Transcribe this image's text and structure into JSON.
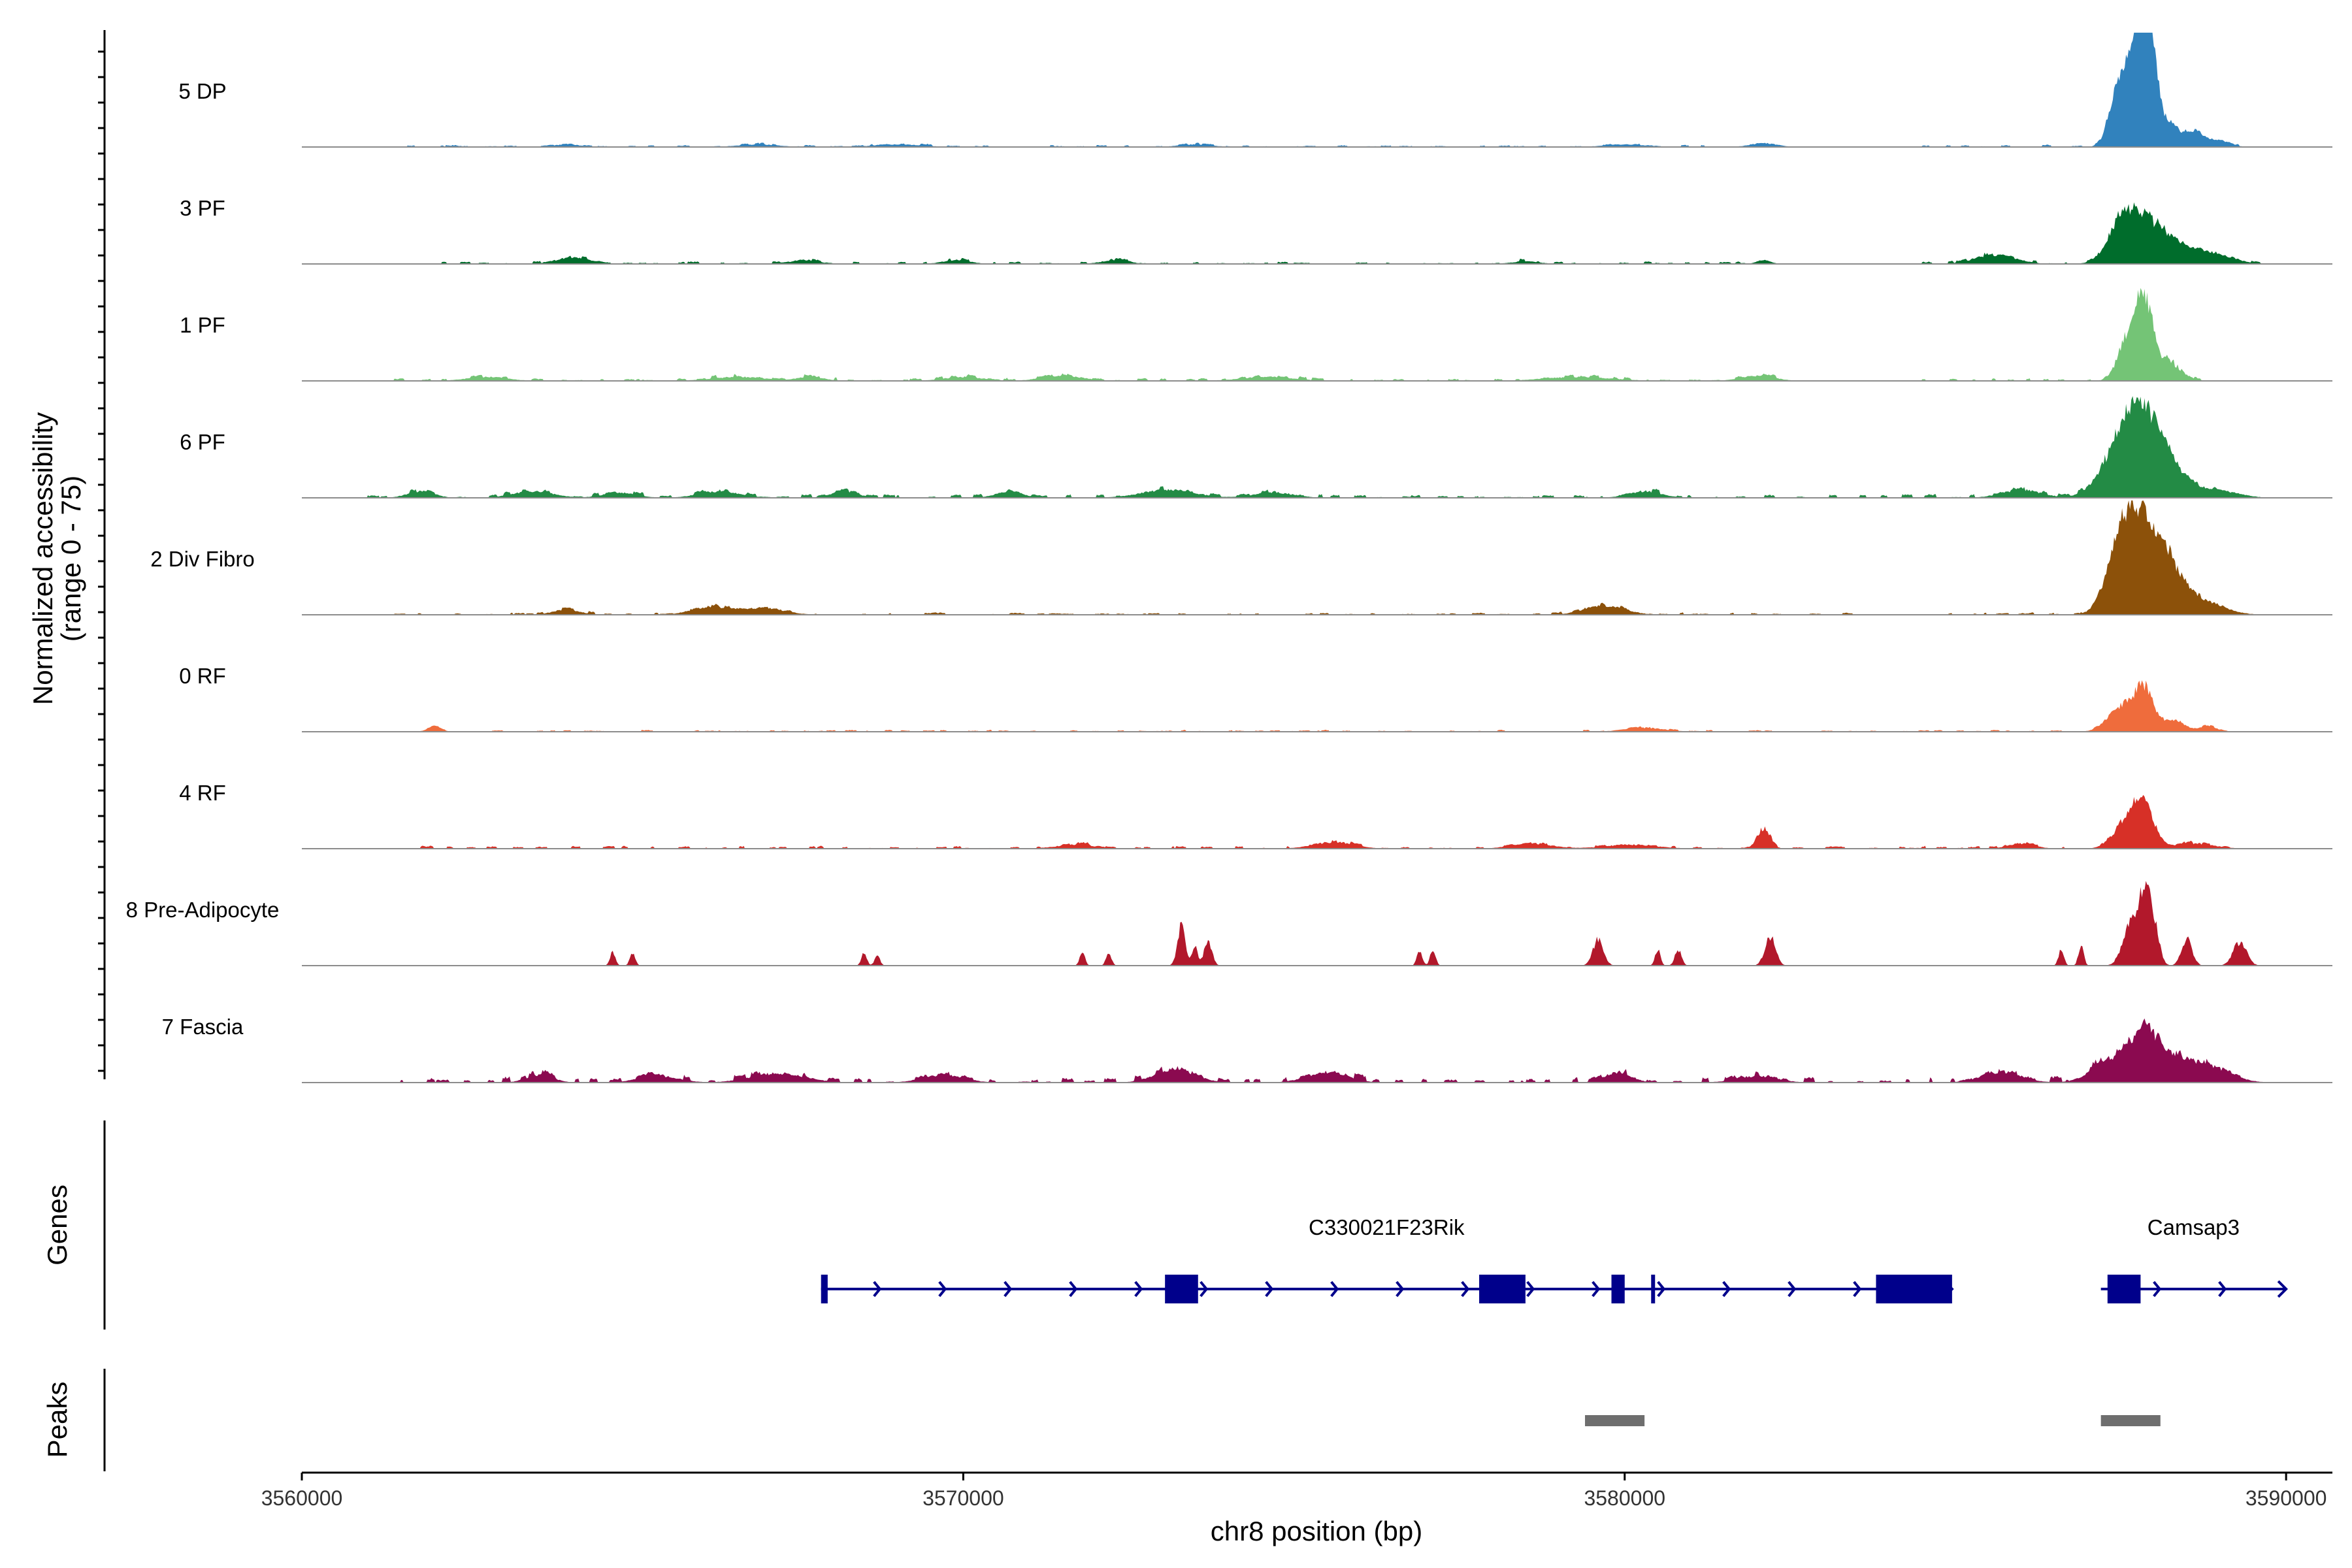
{
  "chart_data": {
    "type": "area",
    "chromosome": "chr8",
    "xlabel": "chr8 position (bp)",
    "xlim": [
      3560000,
      3590700
    ],
    "x_ticks": [
      3560000,
      3570000,
      3580000,
      3590000
    ],
    "x_tick_labels": [
      "3560000",
      "3570000",
      "3580000",
      "3590000"
    ],
    "ylabel_line1": "Normalized accessibility",
    "ylabel_line2": "(range 0 - 75)",
    "ylim": [
      0,
      75
    ],
    "tracks": [
      {
        "name": "5 DP",
        "color": "#3182bd",
        "background": [
          [
            3561000,
            3581500,
            0.8
          ],
          [
            3584500,
            3589300,
            1.0
          ]
        ],
        "peaks": [
          [
            3564000,
            200,
            2
          ],
          [
            3566900,
            300,
            2
          ],
          [
            3569000,
            350,
            2
          ],
          [
            3573500,
            250,
            2
          ],
          [
            3580000,
            300,
            2
          ],
          [
            3582100,
            200,
            3
          ],
          [
            3587400,
            120,
            28
          ],
          [
            3587600,
            130,
            48
          ],
          [
            3587800,
            120,
            70
          ],
          [
            3587950,
            100,
            62
          ],
          [
            3588200,
            150,
            18
          ],
          [
            3588600,
            150,
            12
          ],
          [
            3589000,
            150,
            5
          ]
        ]
      },
      {
        "name": "3 PF",
        "color": "#006d2c",
        "background": [
          [
            3561700,
            3582100,
            1.0
          ],
          [
            3584500,
            3589800,
            1.2
          ]
        ],
        "peaks": [
          [
            3564100,
            250,
            5
          ],
          [
            3567600,
            200,
            3
          ],
          [
            3569900,
            200,
            3
          ],
          [
            3572300,
            200,
            3
          ],
          [
            3578500,
            200,
            2
          ],
          [
            3582100,
            100,
            3
          ],
          [
            3585600,
            300,
            7
          ],
          [
            3587500,
            200,
            20
          ],
          [
            3587800,
            300,
            30
          ],
          [
            3588300,
            300,
            12
          ],
          [
            3588900,
            300,
            7
          ]
        ]
      },
      {
        "name": "1 PF",
        "color": "#74c476",
        "background": [
          [
            3561400,
            3582300,
            1.2
          ],
          [
            3584500,
            3588700,
            1.2
          ]
        ],
        "peaks": [
          [
            3562800,
            300,
            3
          ],
          [
            3566600,
            400,
            3
          ],
          [
            3567700,
            200,
            3
          ],
          [
            3570000,
            300,
            3
          ],
          [
            3571500,
            300,
            4
          ],
          [
            3574600,
            400,
            3
          ],
          [
            3579300,
            500,
            3
          ],
          [
            3582000,
            250,
            4
          ],
          [
            3587600,
            150,
            30
          ],
          [
            3587850,
            130,
            55
          ],
          [
            3588200,
            200,
            15
          ]
        ]
      },
      {
        "name": "6 PF",
        "color": "#238b45",
        "background": [
          [
            3561000,
            3589200,
            1.5
          ]
        ],
        "peaks": [
          [
            3561800,
            200,
            5
          ],
          [
            3563500,
            300,
            5
          ],
          [
            3564800,
            250,
            4
          ],
          [
            3566300,
            300,
            5
          ],
          [
            3568200,
            200,
            5
          ],
          [
            3570700,
            200,
            5
          ],
          [
            3573100,
            400,
            6
          ],
          [
            3574700,
            300,
            4
          ],
          [
            3580300,
            250,
            5
          ],
          [
            3586000,
            300,
            6
          ],
          [
            3587500,
            300,
            30
          ],
          [
            3587850,
            300,
            53
          ],
          [
            3588300,
            300,
            12
          ],
          [
            3589000,
            300,
            5
          ]
        ]
      },
      {
        "name": "2 Div Fibro",
        "color": "#8c510a",
        "background": [
          [
            3561400,
            3584200,
            1.0
          ],
          [
            3584900,
            3588600,
            1.0
          ]
        ],
        "peaks": [
          [
            3564000,
            200,
            4
          ],
          [
            3566200,
            300,
            6
          ],
          [
            3567000,
            300,
            5
          ],
          [
            3579700,
            300,
            7
          ],
          [
            3587500,
            200,
            35
          ],
          [
            3587800,
            300,
            60
          ],
          [
            3588200,
            300,
            25
          ],
          [
            3588800,
            300,
            8
          ]
        ]
      },
      {
        "name": "0 RF",
        "color": "#ef6c3c",
        "background": [
          [
            3562000,
            3589100,
            0.8
          ]
        ],
        "peaks": [
          [
            3562000,
            100,
            4
          ],
          [
            3580300,
            300,
            3
          ],
          [
            3587500,
            200,
            17
          ],
          [
            3587850,
            150,
            32
          ],
          [
            3588300,
            150,
            8
          ],
          [
            3588800,
            150,
            4
          ]
        ]
      },
      {
        "name": "4 RF",
        "color": "#d73027",
        "background": [
          [
            3561800,
            3589200,
            1.2
          ]
        ],
        "peaks": [
          [
            3571700,
            300,
            3
          ],
          [
            3575600,
            300,
            5
          ],
          [
            3578600,
            300,
            4
          ],
          [
            3580100,
            400,
            3
          ],
          [
            3582100,
            100,
            15
          ],
          [
            3586000,
            200,
            4
          ],
          [
            3587600,
            200,
            20
          ],
          [
            3587850,
            150,
            30
          ],
          [
            3588600,
            300,
            4
          ]
        ]
      },
      {
        "name": "8 Pre-Adipocyte",
        "color": "#b2182b",
        "background": [],
        "peaks": [
          [
            3564700,
            40,
            10
          ],
          [
            3565000,
            40,
            10
          ],
          [
            3568500,
            40,
            10
          ],
          [
            3568700,
            40,
            8
          ],
          [
            3571800,
            40,
            10
          ],
          [
            3572200,
            40,
            10
          ],
          [
            3573300,
            60,
            30
          ],
          [
            3573500,
            40,
            15
          ],
          [
            3573700,
            60,
            18
          ],
          [
            3576900,
            40,
            12
          ],
          [
            3577100,
            40,
            12
          ],
          [
            3579600,
            80,
            20
          ],
          [
            3580500,
            40,
            12
          ],
          [
            3580800,
            50,
            12
          ],
          [
            3582200,
            80,
            22
          ],
          [
            3586600,
            40,
            12
          ],
          [
            3586900,
            40,
            15
          ],
          [
            3587650,
            120,
            35
          ],
          [
            3587850,
            80,
            48
          ],
          [
            3588000,
            80,
            30
          ],
          [
            3588500,
            80,
            20
          ],
          [
            3589300,
            100,
            18
          ]
        ]
      },
      {
        "name": "7 Fascia",
        "color": "#8b0a50",
        "background": [
          [
            3561500,
            3589300,
            2.5
          ]
        ],
        "peaks": [
          [
            3563600,
            200,
            6
          ],
          [
            3565400,
            300,
            5
          ],
          [
            3567200,
            400,
            7
          ],
          [
            3569700,
            300,
            6
          ],
          [
            3573200,
            300,
            10
          ],
          [
            3575500,
            300,
            8
          ],
          [
            3579900,
            200,
            8
          ],
          [
            3582000,
            300,
            5
          ],
          [
            3585700,
            300,
            8
          ],
          [
            3587400,
            300,
            18
          ],
          [
            3587850,
            200,
            32
          ],
          [
            3588300,
            300,
            18
          ],
          [
            3588900,
            300,
            10
          ]
        ]
      }
    ],
    "genes_label": "Genes",
    "genes": [
      {
        "name": "C330021F23Rik",
        "color": "#00008b",
        "strand": "+",
        "start": 3567850,
        "end": 3584950,
        "exons": [
          [
            3567850,
            3567950
          ],
          [
            3573050,
            3573550
          ],
          [
            3577800,
            3578500
          ],
          [
            3579800,
            3580000
          ],
          [
            3580400,
            3580450
          ],
          [
            3583800,
            3584950
          ]
        ]
      },
      {
        "name": "Camsap3",
        "color": "#00008b",
        "strand": "+",
        "start": 3587200,
        "end": 3590000,
        "exons": [
          [
            3587300,
            3587800
          ]
        ]
      }
    ],
    "peaks_label": "Peaks",
    "called_peaks": [
      [
        3579400,
        3580300
      ],
      [
        3587200,
        3588100
      ]
    ]
  }
}
